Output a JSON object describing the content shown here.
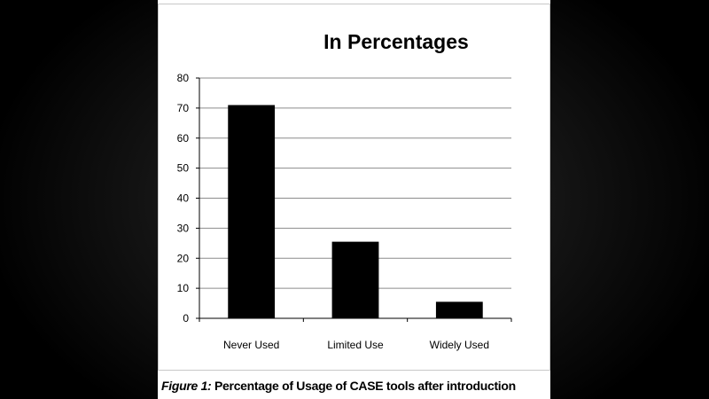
{
  "caption": {
    "label": "Figure 1:",
    "text": "Percentage  of Usage of CASE tools after introduction"
  },
  "chart_data": {
    "type": "bar",
    "title": "In Percentages",
    "categories": [
      "Never Used",
      "Limited Use",
      "Widely Used"
    ],
    "values": [
      71,
      25.5,
      5.5
    ],
    "ylim": [
      0,
      80
    ],
    "yticks": [
      0,
      10,
      20,
      30,
      40,
      50,
      60,
      70,
      80
    ],
    "grid": true,
    "legend": "none",
    "bar_color": "#000000",
    "grid_color": "#8c8c8c"
  }
}
